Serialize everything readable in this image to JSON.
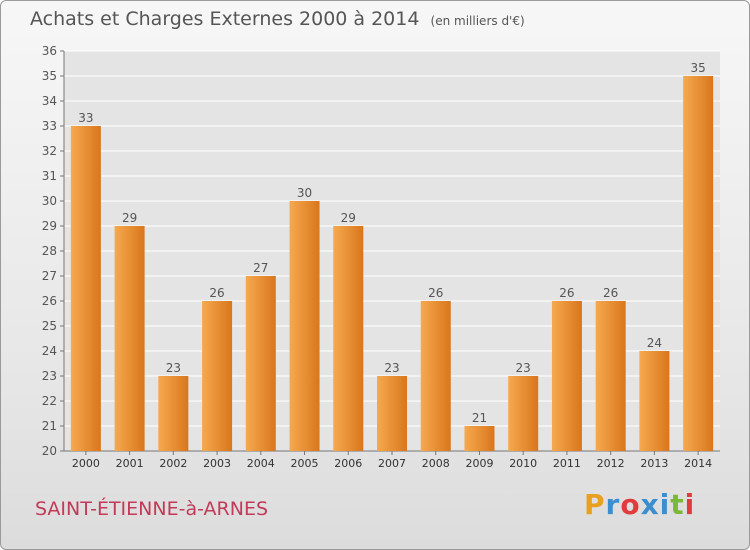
{
  "header": {
    "title": "Achats et Charges Externes 2000 à 2014",
    "subtitle": "(en milliers d'€)"
  },
  "commune": "SAINT-ÉTIENNE-à-ARNES",
  "logo": {
    "text": "Proxiti",
    "letter_colors": [
      "#e8a021",
      "#3b8ed0",
      "#e23b3b",
      "#3b8ed0",
      "#3b8ed0",
      "#7ab83b",
      "#e23b3b"
    ]
  },
  "colors": {
    "bar_light": "#f6a94f",
    "bar_dark": "#d9761c",
    "grid": "#ffffff",
    "text": "#555555",
    "commune": "#c23a58"
  },
  "chart_data": {
    "type": "bar",
    "categories": [
      "2000",
      "2001",
      "2002",
      "2003",
      "2004",
      "2005",
      "2006",
      "2007",
      "2008",
      "2009",
      "2010",
      "2011",
      "2012",
      "2013",
      "2014"
    ],
    "values": [
      33,
      29,
      23,
      26,
      27,
      30,
      29,
      23,
      26,
      21,
      23,
      26,
      26,
      24,
      35
    ],
    "ylim": [
      20,
      36
    ],
    "yticks": [
      20,
      21,
      22,
      23,
      24,
      25,
      26,
      27,
      28,
      29,
      30,
      31,
      32,
      33,
      34,
      35,
      36
    ],
    "grid": true,
    "data_labels": true
  }
}
